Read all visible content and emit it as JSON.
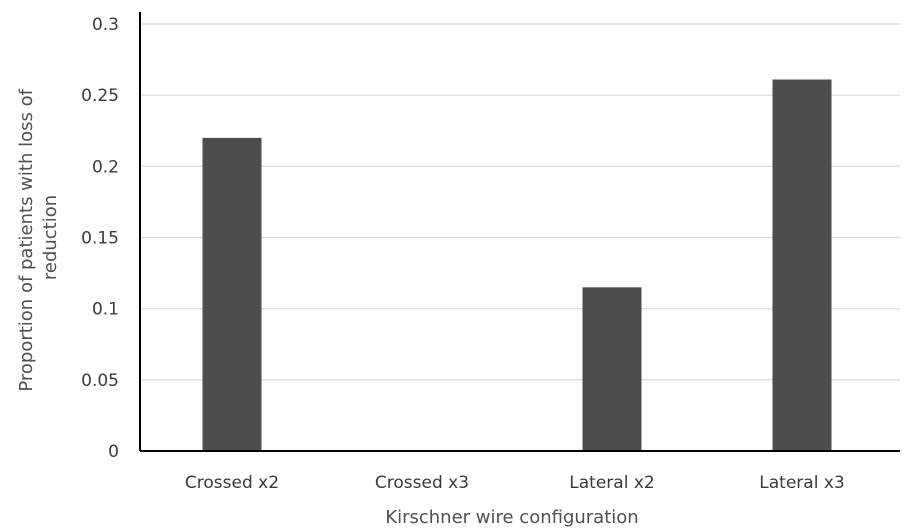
{
  "chart_data": {
    "type": "bar",
    "title": "",
    "xlabel": "Kirschner wire configuration",
    "ylabel_lines": [
      "Proportion of patients with loss of",
      "reduction"
    ],
    "categories": [
      "Crossed x2",
      "Crossed x3",
      "Lateral x2",
      "Lateral x3"
    ],
    "values": [
      0.22,
      0,
      0.115,
      0.261
    ],
    "ylim": [
      0,
      0.3
    ],
    "yticks": [
      0,
      0.05,
      0.1,
      0.15,
      0.2,
      0.25,
      0.3
    ],
    "ytick_labels": [
      "0",
      "0.05",
      "0.1",
      "0.15",
      "0.2",
      "0.25",
      "0.3"
    ],
    "grid": true,
    "legend": "none",
    "colors": {
      "bar": "#4d4d4d",
      "grid": "#d9d9d9",
      "axis": "#000000"
    }
  }
}
